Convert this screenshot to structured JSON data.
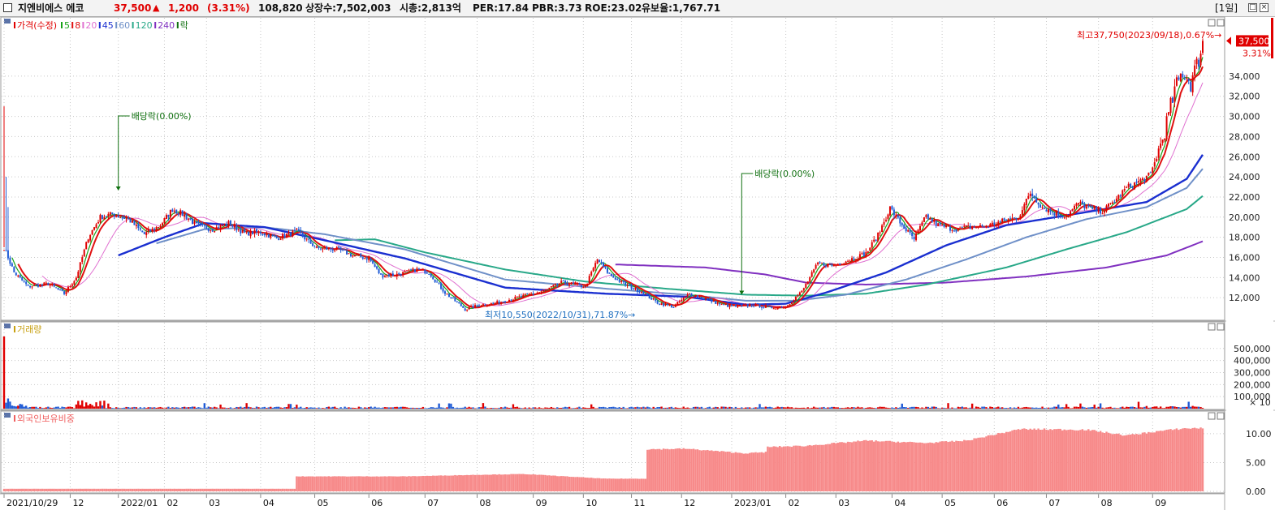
{
  "header": {
    "title": "지엔비에스 에코",
    "price": "37,500",
    "change_arrow": "▲",
    "change": "1,200",
    "change_pct": "(3.31%)",
    "volume": "108,820",
    "listed_shares": "상장수:7,502,003",
    "market_cap": "시총:2,813억",
    "per": "PER:17.84",
    "pbr": "PBR:3.73",
    "roe": "ROE:23.02",
    "retention": "유보율:1,767.71",
    "period": "[1일]"
  },
  "colors": {
    "up": "#e00000",
    "down": "#1f5bd6",
    "ma5": "#17a317",
    "ma8": "#e01010",
    "ma20": "#e070d0",
    "ma45": "#1a2fd0",
    "ma60": "#6f90c8",
    "ma120": "#28a888",
    "ma240": "#8030c0",
    "dividend": "#107010",
    "foreign": "#f78a8a"
  },
  "chart_data": [
    {
      "type": "candlestick",
      "panel": "price",
      "legend": [
        {
          "label": "가격(수정)",
          "color": "#e00000"
        },
        {
          "label": "5",
          "color": "#17a317"
        },
        {
          "label": "8",
          "color": "#e01010"
        },
        {
          "label": "20",
          "color": "#e070d0"
        },
        {
          "label": "45",
          "color": "#1a2fd0"
        },
        {
          "label": "60",
          "color": "#6f90c8"
        },
        {
          "label": "120",
          "color": "#28a888"
        },
        {
          "label": "240",
          "color": "#8030c0"
        },
        {
          "label": "락",
          "color": "#107010"
        }
      ],
      "y_ticks": [
        12000,
        14000,
        16000,
        18000,
        20000,
        22000,
        24000,
        26000,
        28000,
        30000,
        32000,
        34000
      ],
      "y_tick_labels": [
        "12,000",
        "14,000",
        "16,000",
        "18,000",
        "20,000",
        "22,000",
        "24,000",
        "26,000",
        "28,000",
        "30,000",
        "32,000",
        "34,000"
      ],
      "ylim": [
        10000,
        38500
      ],
      "current_price": {
        "value": 37500,
        "label": "37,500",
        "pct_label": "3.31%"
      },
      "high_annotation": "최고37,750(2023/09/18),0.67%→",
      "low_annotation": "최저10,550(2022/10/31),71.87%→",
      "dividend_markers": [
        {
          "label": "배당락(0.00%)",
          "date": "2021/12/28",
          "price": 22400
        },
        {
          "label": "배당락(0.00%)",
          "date": "2022/12/28",
          "price": 12050
        }
      ],
      "close_anchors": [
        [
          0,
          17000
        ],
        [
          5,
          14500
        ],
        [
          12,
          13100
        ],
        [
          22,
          13400
        ],
        [
          30,
          12400
        ],
        [
          36,
          14000
        ],
        [
          42,
          18000
        ],
        [
          48,
          20000
        ],
        [
          54,
          20300
        ],
        [
          62,
          19800
        ],
        [
          70,
          18300
        ],
        [
          78,
          19200
        ],
        [
          84,
          20800
        ],
        [
          90,
          20200
        ],
        [
          96,
          19200
        ],
        [
          104,
          18800
        ],
        [
          112,
          19400
        ],
        [
          120,
          18400
        ],
        [
          128,
          18500
        ],
        [
          136,
          17900
        ],
        [
          146,
          18600
        ],
        [
          156,
          16900
        ],
        [
          166,
          16800
        ],
        [
          174,
          16200
        ],
        [
          182,
          15900
        ],
        [
          188,
          14200
        ],
        [
          196,
          14300
        ],
        [
          206,
          14800
        ],
        [
          212,
          14500
        ],
        [
          220,
          12500
        ],
        [
          230,
          10850
        ],
        [
          238,
          11300
        ],
        [
          246,
          11500
        ],
        [
          254,
          11900
        ],
        [
          262,
          12300
        ],
        [
          270,
          12700
        ],
        [
          278,
          13500
        ],
        [
          284,
          13300
        ],
        [
          290,
          13100
        ],
        [
          296,
          15800
        ],
        [
          302,
          14300
        ],
        [
          310,
          13300
        ],
        [
          318,
          12600
        ],
        [
          326,
          11500
        ],
        [
          334,
          11100
        ],
        [
          342,
          12400
        ],
        [
          350,
          11900
        ],
        [
          358,
          11300
        ],
        [
          366,
          11100
        ],
        [
          374,
          11300
        ],
        [
          382,
          11000
        ],
        [
          390,
          11150
        ],
        [
          398,
          12600
        ],
        [
          406,
          15400
        ],
        [
          414,
          15200
        ],
        [
          422,
          15800
        ],
        [
          430,
          16400
        ],
        [
          436,
          18200
        ],
        [
          442,
          20900
        ],
        [
          448,
          19200
        ],
        [
          454,
          17800
        ],
        [
          460,
          20100
        ],
        [
          466,
          19200
        ],
        [
          474,
          18800
        ],
        [
          482,
          19000
        ],
        [
          490,
          19100
        ],
        [
          498,
          19600
        ],
        [
          506,
          20000
        ],
        [
          512,
          22400
        ],
        [
          518,
          21000
        ],
        [
          524,
          20400
        ],
        [
          530,
          20100
        ],
        [
          536,
          21400
        ],
        [
          542,
          20800
        ],
        [
          548,
          20600
        ],
        [
          554,
          21600
        ],
        [
          560,
          22900
        ],
        [
          566,
          23500
        ],
        [
          572,
          24200
        ],
        [
          578,
          27800
        ],
        [
          584,
          32500
        ],
        [
          588,
          34500
        ],
        [
          592,
          33400
        ],
        [
          595,
          35000
        ],
        [
          598,
          37500
        ]
      ],
      "moving_averages": [
        {
          "name": "45",
          "anchors": [
            [
              57,
              16200
            ],
            [
              80,
              18000
            ],
            [
              100,
              19400
            ],
            [
              130,
              19000
            ],
            [
              160,
              17700
            ],
            [
              200,
              15900
            ],
            [
              250,
              13000
            ],
            [
              300,
              12400
            ],
            [
              340,
              12100
            ],
            [
              370,
              11300
            ],
            [
              390,
              11400
            ],
            [
              410,
              12500
            ],
            [
              440,
              14500
            ],
            [
              470,
              17200
            ],
            [
              500,
              19200
            ],
            [
              540,
              20500
            ],
            [
              570,
              21500
            ],
            [
              590,
              23800
            ],
            [
              598,
              26200
            ]
          ]
        },
        {
          "name": "60",
          "anchors": [
            [
              76,
              17400
            ],
            [
              100,
              18800
            ],
            [
              130,
              19000
            ],
            [
              160,
              18300
            ],
            [
              200,
              16800
            ],
            [
              250,
              13800
            ],
            [
              300,
              12900
            ],
            [
              340,
              12300
            ],
            [
              370,
              11700
            ],
            [
              395,
              11700
            ],
            [
              420,
              12300
            ],
            [
              450,
              13800
            ],
            [
              480,
              15800
            ],
            [
              510,
              18000
            ],
            [
              540,
              19800
            ],
            [
              570,
              21000
            ],
            [
              590,
              22900
            ],
            [
              598,
              24800
            ]
          ]
        },
        {
          "name": "120",
          "anchors": [
            [
              165,
              17700
            ],
            [
              185,
              17800
            ],
            [
              210,
              16500
            ],
            [
              250,
              14800
            ],
            [
              290,
              13600
            ],
            [
              330,
              12900
            ],
            [
              370,
              12300
            ],
            [
              400,
              12200
            ],
            [
              430,
              12400
            ],
            [
              460,
              13300
            ],
            [
              500,
              15000
            ],
            [
              530,
              16800
            ],
            [
              560,
              18500
            ],
            [
              590,
              20800
            ],
            [
              598,
              22100
            ]
          ]
        },
        {
          "name": "240",
          "anchors": [
            [
              305,
              15300
            ],
            [
              350,
              15000
            ],
            [
              380,
              14300
            ],
            [
              400,
              13500
            ],
            [
              430,
              13300
            ],
            [
              470,
              13500
            ],
            [
              510,
              14100
            ],
            [
              550,
              15000
            ],
            [
              580,
              16200
            ],
            [
              598,
              17600
            ]
          ]
        }
      ]
    },
    {
      "type": "bar",
      "panel": "volume",
      "legend": "거래량",
      "y_ticks": [
        100000,
        200000,
        300000,
        400000,
        500000
      ],
      "y_tick_labels": [
        "100,000",
        "200,000",
        "300,000",
        "400,000",
        "500,000"
      ],
      "y_multiplier": "× 10",
      "ylim": [
        0,
        620000
      ]
    },
    {
      "type": "bar",
      "panel": "foreign_ownership",
      "legend": "외국인보유비중",
      "y_ticks": [
        0,
        5,
        10
      ],
      "y_tick_labels": [
        "0.00",
        "5.00",
        "10.00"
      ],
      "ylim": [
        0,
        12.8
      ],
      "segment_anchors": [
        [
          0,
          0.45
        ],
        [
          145,
          0.45
        ],
        [
          146,
          2.6
        ],
        [
          200,
          2.6
        ],
        [
          240,
          2.9
        ],
        [
          260,
          3.0
        ],
        [
          300,
          2.2
        ],
        [
          320,
          2.2
        ],
        [
          321,
          7.3
        ],
        [
          340,
          7.4
        ],
        [
          370,
          6.6
        ],
        [
          380,
          6.8
        ],
        [
          381,
          7.7
        ],
        [
          400,
          7.9
        ],
        [
          430,
          8.8
        ],
        [
          460,
          8.4
        ],
        [
          480,
          8.8
        ],
        [
          507,
          10.8
        ],
        [
          540,
          10.7
        ],
        [
          560,
          9.7
        ],
        [
          575,
          10.4
        ],
        [
          588,
          10.9
        ],
        [
          598,
          11.0
        ]
      ]
    }
  ],
  "x_axis": {
    "labels": [
      "2021/10/29",
      "12",
      "2022/01",
      "02",
      "03",
      "04",
      "05",
      "06",
      "07",
      "08",
      "09",
      "10",
      "11",
      "12",
      "2023/01",
      "02",
      "03",
      "04",
      "05",
      "06",
      "07",
      "08",
      "09"
    ],
    "positions": [
      0,
      33,
      57,
      80,
      101,
      128,
      155,
      182,
      210,
      236,
      264,
      289,
      313,
      338,
      363,
      390,
      415,
      443,
      468,
      494,
      520,
      546,
      573
    ]
  }
}
